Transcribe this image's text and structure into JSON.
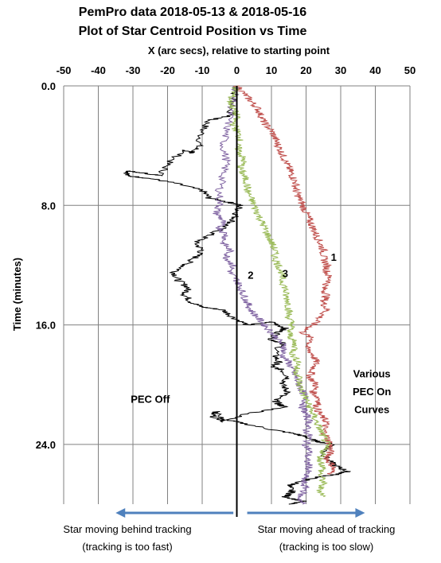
{
  "chart_data": {
    "type": "line",
    "title": [
      "PemPro data 2018-05-13 & 2018-05-16",
      "Plot of Star Centroid Position vs Time"
    ],
    "xlabel": "X  (arc secs), relative to starting point",
    "ylabel": "Time (minutes)",
    "xlim": [
      -50,
      50
    ],
    "ylim": [
      0,
      28
    ],
    "y_inverted": true,
    "x_axis_position": "top",
    "x_ticks": [
      -50,
      -40,
      -30,
      -20,
      -10,
      0,
      10,
      20,
      30,
      40,
      50
    ],
    "y_ticks": [
      0.0,
      8.0,
      16.0,
      24.0
    ],
    "y_tick_labels": [
      "0.0",
      "8.0",
      "16.0",
      "24.0"
    ],
    "vertical_gridlines": true,
    "horizontal_gridlines": true,
    "series": [
      {
        "name": "PEC Off",
        "color": "#000000",
        "points": [
          [
            0,
            0
          ],
          [
            -1,
            1
          ],
          [
            -2,
            2
          ],
          [
            -8,
            2.3
          ],
          [
            -10,
            3
          ],
          [
            -11,
            4
          ],
          [
            -13,
            4.5
          ],
          [
            -15,
            4.3
          ],
          [
            -20,
            5.2
          ],
          [
            -22,
            6
          ],
          [
            -28,
            5.8
          ],
          [
            -31,
            5.7
          ],
          [
            -32,
            6
          ],
          [
            -25,
            6.2
          ],
          [
            -18,
            6.5
          ],
          [
            -10,
            7
          ],
          [
            -8,
            7.5
          ],
          [
            -2,
            7.8
          ],
          [
            1,
            8
          ],
          [
            0,
            8.5
          ],
          [
            -1,
            9
          ],
          [
            -4,
            9.5
          ],
          [
            -8,
            10
          ],
          [
            -12,
            10.5
          ],
          [
            -10,
            11
          ],
          [
            -12,
            11.5
          ],
          [
            -15,
            12
          ],
          [
            -18,
            12.5
          ],
          [
            -17,
            13
          ],
          [
            -14,
            13.5
          ],
          [
            -15,
            14
          ],
          [
            -13,
            14.5
          ],
          [
            -10,
            14.8
          ],
          [
            -4,
            15
          ],
          [
            -1,
            15.5
          ],
          [
            3,
            16
          ],
          [
            10,
            15.8
          ],
          [
            14,
            16.2
          ],
          [
            12,
            16.5
          ],
          [
            10,
            17
          ],
          [
            13,
            17.2
          ],
          [
            11,
            18
          ],
          [
            12,
            18.5
          ],
          [
            10,
            18.8
          ],
          [
            13,
            19
          ],
          [
            15,
            19.5
          ],
          [
            13,
            20
          ],
          [
            15,
            20.5
          ],
          [
            11,
            21
          ],
          [
            12,
            21.3
          ],
          [
            14,
            21.5
          ],
          [
            2,
            22
          ],
          [
            -4,
            22.5
          ],
          [
            -6,
            21.8
          ],
          [
            -7,
            22.2
          ],
          [
            0,
            22.5
          ],
          [
            10,
            23
          ],
          [
            17,
            23.3
          ],
          [
            20,
            23.5
          ],
          [
            23,
            23.8
          ],
          [
            28,
            24
          ],
          [
            25,
            24.5
          ],
          [
            26,
            25
          ],
          [
            29,
            25.5
          ],
          [
            32,
            25.8
          ],
          [
            29,
            26
          ],
          [
            23,
            26.2
          ],
          [
            18,
            26.5
          ],
          [
            15,
            26.8
          ],
          [
            16,
            27.2
          ],
          [
            14,
            27.5
          ],
          [
            19,
            27.8
          ],
          [
            15,
            28
          ]
        ]
      },
      {
        "name": "1",
        "color": "#c0504d",
        "points": [
          [
            0,
            0
          ],
          [
            2,
            0.5
          ],
          [
            4,
            1
          ],
          [
            6,
            1.5
          ],
          [
            7,
            2
          ],
          [
            8,
            2.5
          ],
          [
            10,
            3
          ],
          [
            11,
            3.5
          ],
          [
            12,
            4
          ],
          [
            13,
            4.5
          ],
          [
            14,
            5
          ],
          [
            15,
            5.5
          ],
          [
            16,
            6
          ],
          [
            17,
            6.5
          ],
          [
            17,
            7
          ],
          [
            18,
            7.5
          ],
          [
            19,
            8
          ],
          [
            20,
            8.5
          ],
          [
            21,
            9
          ],
          [
            22,
            9.5
          ],
          [
            23,
            10
          ],
          [
            24,
            10.5
          ],
          [
            25,
            11
          ],
          [
            25,
            11.5
          ],
          [
            26,
            12
          ],
          [
            26,
            12.5
          ],
          [
            27,
            13
          ],
          [
            25,
            13.5
          ],
          [
            26,
            14
          ],
          [
            25,
            14.5
          ],
          [
            26,
            15
          ],
          [
            24,
            15.5
          ],
          [
            22,
            16
          ],
          [
            19,
            16.5
          ],
          [
            22,
            17
          ],
          [
            20,
            17.5
          ],
          [
            22,
            18
          ],
          [
            23,
            18.5
          ],
          [
            22,
            19
          ],
          [
            21,
            19.5
          ],
          [
            23,
            20
          ],
          [
            22,
            20.5
          ],
          [
            24,
            21
          ],
          [
            23,
            21.5
          ],
          [
            24,
            22
          ],
          [
            26,
            22.5
          ],
          [
            25,
            23
          ],
          [
            26,
            23.5
          ],
          [
            27,
            24
          ],
          [
            27,
            24.5
          ],
          [
            26,
            25
          ],
          [
            28,
            25.5
          ],
          [
            27,
            26
          ]
        ]
      },
      {
        "name": "2",
        "color": "#8064a2",
        "points": [
          [
            0,
            0
          ],
          [
            -1,
            1
          ],
          [
            -2,
            2
          ],
          [
            -3,
            3
          ],
          [
            -4,
            4
          ],
          [
            -3,
            5
          ],
          [
            -4,
            6
          ],
          [
            -5,
            7
          ],
          [
            -5,
            8
          ],
          [
            -6,
            8.5
          ],
          [
            -4,
            9
          ],
          [
            -5,
            9.5
          ],
          [
            -3,
            10
          ],
          [
            -4,
            10.5
          ],
          [
            -2,
            11
          ],
          [
            -3,
            11.5
          ],
          [
            -1,
            12
          ],
          [
            -2,
            12.5
          ],
          [
            0,
            13
          ],
          [
            1,
            13.5
          ],
          [
            2,
            14
          ],
          [
            3,
            14.5
          ],
          [
            4,
            15
          ],
          [
            6,
            15.5
          ],
          [
            8,
            16
          ],
          [
            10,
            16.5
          ],
          [
            12,
            17
          ],
          [
            14,
            17.5
          ],
          [
            13,
            18
          ],
          [
            15,
            18.5
          ],
          [
            16,
            19
          ],
          [
            17,
            19.5
          ],
          [
            18,
            20
          ],
          [
            19,
            20.5
          ],
          [
            20,
            21
          ],
          [
            19,
            21.5
          ],
          [
            20,
            22
          ],
          [
            21,
            22.5
          ],
          [
            20,
            23
          ],
          [
            21,
            23.5
          ],
          [
            20,
            24
          ],
          [
            21,
            24.5
          ],
          [
            20,
            25
          ],
          [
            21,
            25.5
          ],
          [
            20,
            26
          ],
          [
            19,
            26.5
          ],
          [
            20,
            27
          ],
          [
            18,
            27.5
          ],
          [
            19,
            28
          ]
        ]
      },
      {
        "name": "3",
        "color": "#9bbb59",
        "points": [
          [
            0,
            0
          ],
          [
            -1,
            0.5
          ],
          [
            -2,
            1
          ],
          [
            -1,
            1.5
          ],
          [
            0,
            2
          ],
          [
            -1,
            2.5
          ],
          [
            0,
            3
          ],
          [
            1,
            3.5
          ],
          [
            0,
            4
          ],
          [
            1,
            4.5
          ],
          [
            2,
            5
          ],
          [
            1,
            5.5
          ],
          [
            2,
            6
          ],
          [
            3,
            6.5
          ],
          [
            3,
            7
          ],
          [
            4,
            7.5
          ],
          [
            5,
            8
          ],
          [
            6,
            8.5
          ],
          [
            7,
            9
          ],
          [
            8,
            9.5
          ],
          [
            9,
            10
          ],
          [
            10,
            10.5
          ],
          [
            11,
            11
          ],
          [
            11,
            11.5
          ],
          [
            12,
            12
          ],
          [
            13,
            12.5
          ],
          [
            13,
            13
          ],
          [
            14,
            13.5
          ],
          [
            14,
            14
          ],
          [
            15,
            14.5
          ],
          [
            15,
            15
          ],
          [
            15,
            15.5
          ],
          [
            16,
            16
          ],
          [
            15,
            16.5
          ],
          [
            16,
            17
          ],
          [
            17,
            17.5
          ],
          [
            16,
            18
          ],
          [
            18,
            18.5
          ],
          [
            17,
            19
          ],
          [
            18,
            19.5
          ],
          [
            18,
            20
          ],
          [
            19,
            20.5
          ],
          [
            20,
            21
          ],
          [
            21,
            21.5
          ],
          [
            22,
            22
          ],
          [
            23,
            22.5
          ],
          [
            24,
            23
          ],
          [
            25,
            23.5
          ],
          [
            26,
            24
          ],
          [
            25,
            24.5
          ],
          [
            24,
            25
          ],
          [
            25,
            25.5
          ],
          [
            24,
            26
          ],
          [
            25,
            26.5
          ],
          [
            24,
            27
          ],
          [
            25,
            27.5
          ]
        ]
      }
    ],
    "zero_axis_line": 0,
    "annotations": [
      {
        "text": "1",
        "x": 28,
        "y": 11.7
      },
      {
        "text": "2",
        "x": 4,
        "y": 12.9
      },
      {
        "text": "3",
        "x": 14,
        "y": 12.8
      },
      {
        "text": "PEC Off",
        "x": -25,
        "y": 21.2
      },
      {
        "text": "Various",
        "x": 39,
        "y": 19.5
      },
      {
        "text": "PEC On",
        "x": 39,
        "y": 20.7
      },
      {
        "text": "Curves",
        "x": 39,
        "y": 21.9
      }
    ],
    "arrows": [
      {
        "direction": "left",
        "from_x": -1,
        "to_x": -35
      },
      {
        "direction": "right",
        "from_x": 3,
        "to_x": 37
      }
    ],
    "footer_left": [
      "Star moving behind tracking",
      "(tracking is too fast)"
    ],
    "footer_right": [
      "Star moving ahead of tracking",
      "(tracking is too slow)"
    ],
    "colors": {
      "arrow": "#4f81bd",
      "grid": "#808080",
      "zero_line": "#000000"
    }
  }
}
